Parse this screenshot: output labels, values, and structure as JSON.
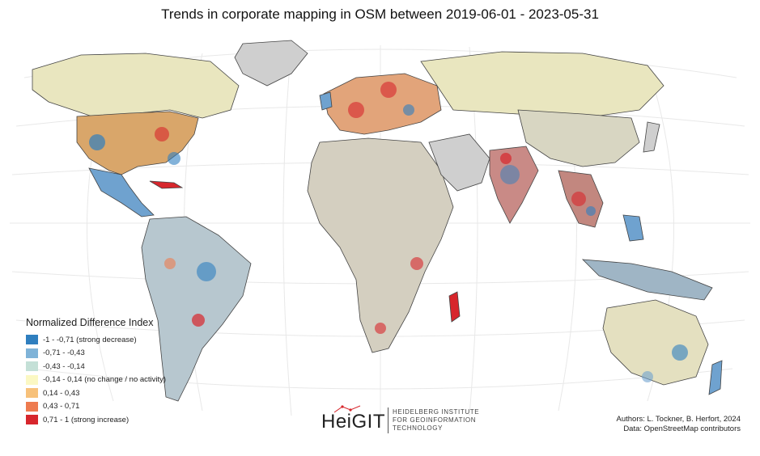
{
  "title": "Trends in corporate mapping in OSM between 2019-06-01 - 2023-05-31",
  "legend": {
    "title": "Normalized Difference Index",
    "items": [
      {
        "label": "-1 - -0,71 (strong decrease)",
        "color": "#2f7fbf"
      },
      {
        "label": "-0,71 - -0,43",
        "color": "#7fb3d8"
      },
      {
        "label": "-0,43 - -0,14",
        "color": "#c4e0d7"
      },
      {
        "label": "-0,14 - 0,14 (no change / no activity)",
        "color": "#fbf8c3"
      },
      {
        "label": "0,14 - 0,43",
        "color": "#f7c17a"
      },
      {
        "label": "0,43 - 0,71",
        "color": "#ee7b4f"
      },
      {
        "label": "0,71 - 1 (strong increase)",
        "color": "#d7262c"
      }
    ]
  },
  "logo": {
    "word": "HeiGIT",
    "line1": "HEIDELBERG INSTITUTE",
    "line2": "FOR GEOINFORMATION",
    "line3": "TECHNOLOGY"
  },
  "credits": {
    "authors": "Authors: L. Tockner, B. Herfort, 2024",
    "data": "Data: OpenStreetMap contributors"
  },
  "colors": {
    "land": "#cfcfcf",
    "graticule": "#e6e6e6",
    "border": "#333333"
  }
}
